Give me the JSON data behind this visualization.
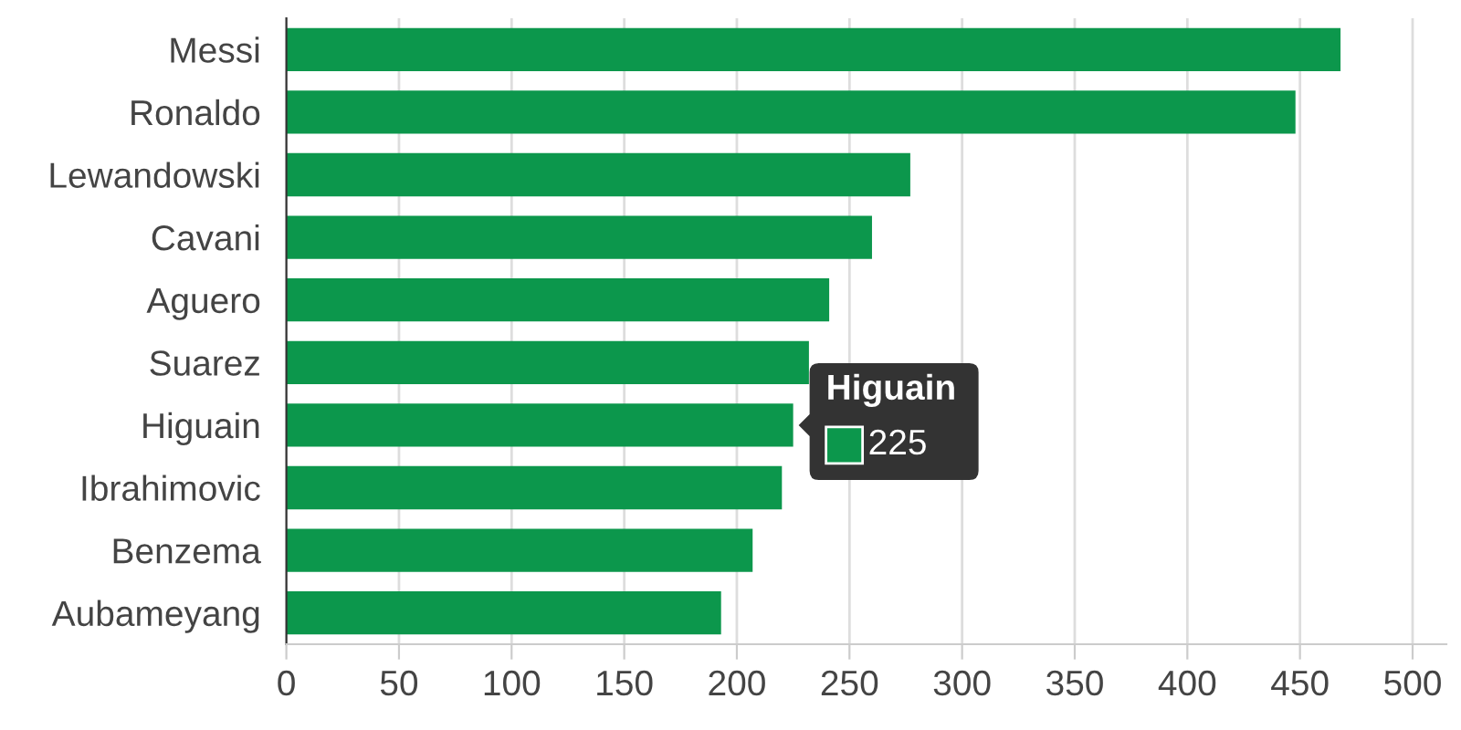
{
  "chart_data": {
    "type": "bar",
    "orientation": "horizontal",
    "categories": [
      "Messi",
      "Ronaldo",
      "Lewandowski",
      "Cavani",
      "Aguero",
      "Suarez",
      "Higuain",
      "Ibrahimovic",
      "Benzema",
      "Aubameyang"
    ],
    "values": [
      468,
      448,
      277,
      260,
      241,
      232,
      225,
      220,
      207,
      193
    ],
    "color": "#0c974c",
    "xlim": [
      0,
      515
    ],
    "xticks": [
      0,
      50,
      100,
      150,
      200,
      250,
      300,
      350,
      400,
      450,
      500
    ],
    "grid": "x",
    "annotations": [
      {
        "text": "Higuain",
        "x": 225,
        "y": "Higuain"
      },
      {
        "text": "225",
        "x": 225,
        "y": "Higuain"
      }
    ]
  }
}
